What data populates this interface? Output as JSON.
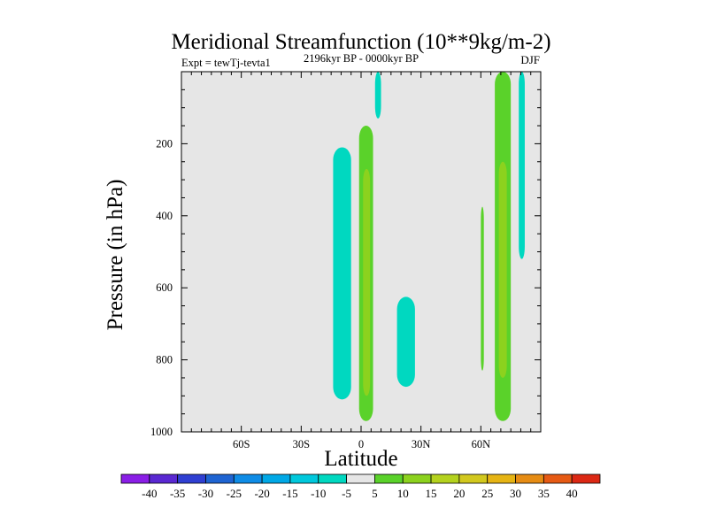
{
  "chart_data": {
    "type": "contour",
    "title": "Meridional Streamfunction (10**9kg/m-2)",
    "experiment_label": "Expt = tewTj-tevta1",
    "period_label": "2196kyr BP - 0000kyr BP",
    "season_label": "DJF",
    "xlabel": "Latitude",
    "ylabel": "Pressure (in hPa)",
    "xlim": [
      -90,
      90
    ],
    "ylim": [
      1000,
      0
    ],
    "x_ticks": [
      {
        "value": -60,
        "label": "60S"
      },
      {
        "value": -30,
        "label": "30S"
      },
      {
        "value": 0,
        "label": "0"
      },
      {
        "value": 30,
        "label": "30N"
      },
      {
        "value": 60,
        "label": "60N"
      }
    ],
    "y_ticks": [
      {
        "value": 200,
        "label": "200"
      },
      {
        "value": 400,
        "label": "400"
      },
      {
        "value": 600,
        "label": "600"
      },
      {
        "value": 800,
        "label": "800"
      },
      {
        "value": 1000,
        "label": "1000"
      }
    ],
    "background_color": "#e6e6e6",
    "colorbar": {
      "boundaries": [
        "-40",
        "-35",
        "-30",
        "-25",
        "-20",
        "-15",
        "-10",
        "-5",
        "5",
        "10",
        "15",
        "20",
        "25",
        "30",
        "35",
        "40"
      ],
      "colors": [
        "#8a1ee6",
        "#5a28d2",
        "#2f3fd2",
        "#1e64d2",
        "#0f8ce6",
        "#00a8e6",
        "#00c8dc",
        "#00d8c0",
        "#e6e6e6",
        "#5ad22a",
        "#8cd21e",
        "#b4d21e",
        "#d2c81e",
        "#e6b414",
        "#e68c14",
        "#e65a14",
        "#dc2814"
      ]
    },
    "regions": [
      {
        "name": "tropical-neg-cell",
        "level": "-10 to -5",
        "color": "#00d8c0",
        "lat_range": [
          -14,
          -5
        ],
        "p_range": [
          210,
          910
        ]
      },
      {
        "name": "equatorial-pos-cell",
        "level": "5 to 10",
        "color": "#5ad22a",
        "lat_range": [
          -1,
          6
        ],
        "p_range": [
          150,
          970
        ]
      },
      {
        "name": "equatorial-pos-core",
        "level": "10 to 15",
        "color": "#8cd21e",
        "lat_range": [
          1,
          4.5
        ],
        "p_range": [
          270,
          900
        ]
      },
      {
        "name": "upper-neg-tongue",
        "level": "-10 to -5",
        "color": "#00d8c0",
        "lat_range": [
          7,
          10
        ],
        "p_range": [
          0,
          130
        ]
      },
      {
        "name": "subtropical-neg-cell",
        "level": "-10 to -5",
        "color": "#00d8c0",
        "lat_range": [
          18,
          27
        ],
        "p_range": [
          625,
          875
        ]
      },
      {
        "name": "midlat-pos-sliver",
        "level": "5 to 10",
        "color": "#5ad22a",
        "lat_range": [
          60,
          61.5
        ],
        "p_range": [
          375,
          830
        ]
      },
      {
        "name": "midlat-pos-cell",
        "level": "5 to 10",
        "color": "#5ad22a",
        "lat_range": [
          67,
          75
        ],
        "p_range": [
          0,
          970
        ]
      },
      {
        "name": "midlat-pos-core",
        "level": "10 to 15",
        "color": "#8cd21e",
        "lat_range": [
          69,
          73
        ],
        "p_range": [
          250,
          850
        ]
      },
      {
        "name": "highlat-neg-strip",
        "level": "-10 to -5",
        "color": "#00d8c0",
        "lat_range": [
          79,
          82
        ],
        "p_range": [
          0,
          520
        ]
      }
    ]
  }
}
